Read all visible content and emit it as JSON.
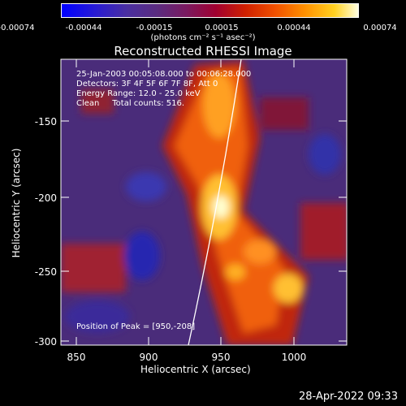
{
  "colorbar": {
    "ticks": [
      "-0.00074",
      "-0.00044",
      "-0.00015",
      "0.00015",
      "0.00044",
      "0.00074"
    ],
    "units": "(photons cm⁻² s⁻¹ asec⁻²)",
    "range": [
      -0.00074,
      0.00074
    ]
  },
  "title": "Reconstructed RHESSI Image",
  "info": {
    "time": "25-Jan-2003 00:05:08.000 to 00:06:28.000",
    "detectors": "Detectors: 3F 4F 5F 6F 7F 8F, Att 0",
    "energy": "Energy Range: 12.0 - 25.0 keV",
    "clean": "Clean     Total counts: 516.",
    "peak": "Position of Peak = [950,-208]"
  },
  "axes": {
    "xlabel": "Heliocentric X (arcsec)",
    "ylabel": "Heliocentric Y (arcsec)",
    "xticks": [
      "850",
      "900",
      "950",
      "1000"
    ],
    "yticks": [
      "-150",
      "-200",
      "-250",
      "-300"
    ],
    "xrange": [
      840,
      1030
    ],
    "yrange": [
      -302,
      -112
    ]
  },
  "footer": {
    "timestamp": "28-Apr-2022 09:33"
  },
  "colors": {
    "limb": "#ffffff",
    "background": "#000000"
  }
}
